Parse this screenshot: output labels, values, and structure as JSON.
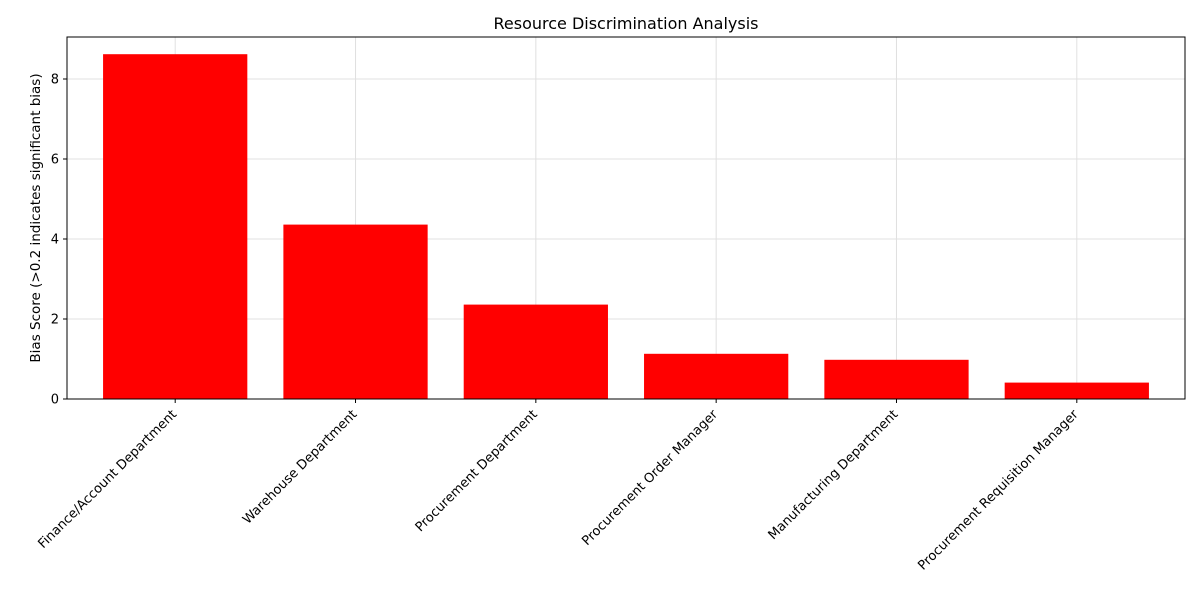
{
  "chart_data": {
    "type": "bar",
    "title": "Resource Discrimination Analysis",
    "xlabel": "",
    "ylabel": "Bias Score (>0.2 indicates significant bias)",
    "categories": [
      "Finance/Account Department",
      "Warehouse Department",
      "Procurement Department",
      "Procurement Order Manager",
      "Manufacturing Department",
      "Procurement Requisition Manager"
    ],
    "values": [
      8.62,
      4.36,
      2.36,
      1.13,
      0.98,
      0.41
    ],
    "ylim": [
      0,
      9.05
    ],
    "yticks": [
      0,
      2,
      4,
      6,
      8
    ],
    "grid": true,
    "bar_color": "#ff0000",
    "grid_color": "#e0e0e0",
    "axis_color": "#000000"
  }
}
